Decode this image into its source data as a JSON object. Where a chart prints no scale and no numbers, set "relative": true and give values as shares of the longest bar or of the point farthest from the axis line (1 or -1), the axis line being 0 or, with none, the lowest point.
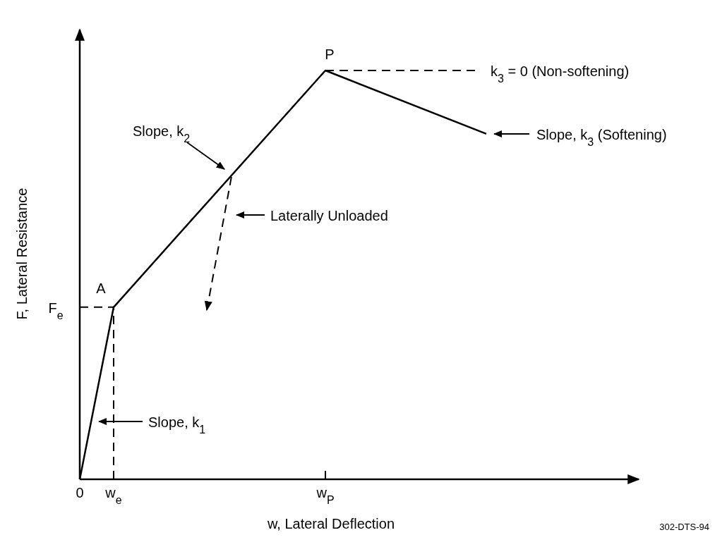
{
  "chart_data": {
    "type": "line",
    "relative": true,
    "xlabel": "w, Lateral Deflection",
    "ylabel": "F, Lateral Resistance",
    "categories": [
      "0",
      null,
      null,
      null,
      "w$_{e}$",
      null,
      null,
      null,
      null,
      null,
      null,
      null,
      null,
      null,
      null,
      null,
      null,
      null,
      null,
      null,
      null,
      null,
      null,
      null,
      null,
      null,
      null,
      null,
      null,
      "w$_{P}$",
      null,
      null,
      null,
      null,
      null,
      null,
      null,
      null,
      null,
      null,
      null,
      null,
      null,
      null,
      null,
      null,
      null,
      null,
      null
    ],
    "marker": "none",
    "series": [
      {
        "color": "#000000",
        "line_style": "solid",
        "values": [
          0,
          null,
          null,
          null,
          0.421,
          null,
          null,
          null,
          null,
          null,
          null,
          null,
          null,
          null,
          null,
          null,
          null,
          null,
          null,
          null,
          null,
          null,
          null,
          null,
          null,
          null,
          null,
          null,
          null,
          1,
          null,
          null,
          null,
          null,
          null,
          null,
          null,
          null,
          null,
          null,
          null,
          null,
          null,
          null,
          null,
          null,
          null,
          null,
          0.845
        ]
      },
      {
        "color": "#000000",
        "line_style": "dashed",
        "values": [
          0.421,
          null,
          null,
          null,
          0.421,
          null,
          null,
          null,
          null,
          null,
          null,
          null,
          null,
          null,
          null,
          null,
          null,
          null,
          null,
          null,
          null,
          null,
          null,
          null,
          null,
          null,
          null,
          null,
          null,
          null,
          null,
          null,
          null,
          null,
          null,
          null,
          null,
          null,
          null,
          null,
          null,
          null,
          null,
          null,
          null,
          null,
          null,
          null,
          null
        ]
      },
      {
        "color": "#000000",
        "line_style": "dashed",
        "x": [
          "w$_{e}$",
          "w$_{e}$"
        ],
        "values": [
          0,
          0.421
        ]
      },
      {
        "color": "#000000",
        "line_style": "dashed",
        "values": [
          null,
          null,
          null,
          null,
          null,
          null,
          null,
          null,
          null,
          null,
          null,
          null,
          null,
          null,
          null,
          null,
          null,
          null,
          null,
          null,
          null,
          null,
          null,
          null,
          null,
          null,
          null,
          null,
          null,
          1,
          null,
          null,
          null,
          null,
          null,
          null,
          null,
          null,
          null,
          null,
          null,
          null,
          null,
          null,
          null,
          null,
          null,
          1,
          null
        ]
      },
      {
        "color": "#000000",
        "line_style": "dashed",
        "values": [
          null,
          null,
          null,
          null,
          null,
          null,
          null,
          null,
          null,
          null,
          null,
          null,
          null,
          null,
          null,
          0.414,
          null,
          null,
          0.75,
          null,
          null,
          null,
          null,
          null,
          null,
          null,
          null,
          null,
          null,
          null,
          null,
          null,
          null,
          null,
          null,
          null,
          null,
          null,
          null,
          null,
          null,
          null,
          null,
          null,
          null,
          null,
          null,
          null,
          null
        ]
      }
    ],
    "annotations": [
      {
        "text": "F$_{e}$",
        "x": "0",
        "y": 0.421
      },
      {
        "text": "A",
        "x": "w$_{e}$",
        "y": 0.421
      },
      {
        "text": "P",
        "x": "w$_{P}$",
        "y": 1
      },
      "k$_{3}$ = 0 (Non-softening)",
      "Slope, k$_{1}$",
      "Slope, k$_{2}$",
      "Slope, k$_{3}$ (Softening)",
      "Laterally Unloaded",
      "302-DTS-94"
    ]
  }
}
